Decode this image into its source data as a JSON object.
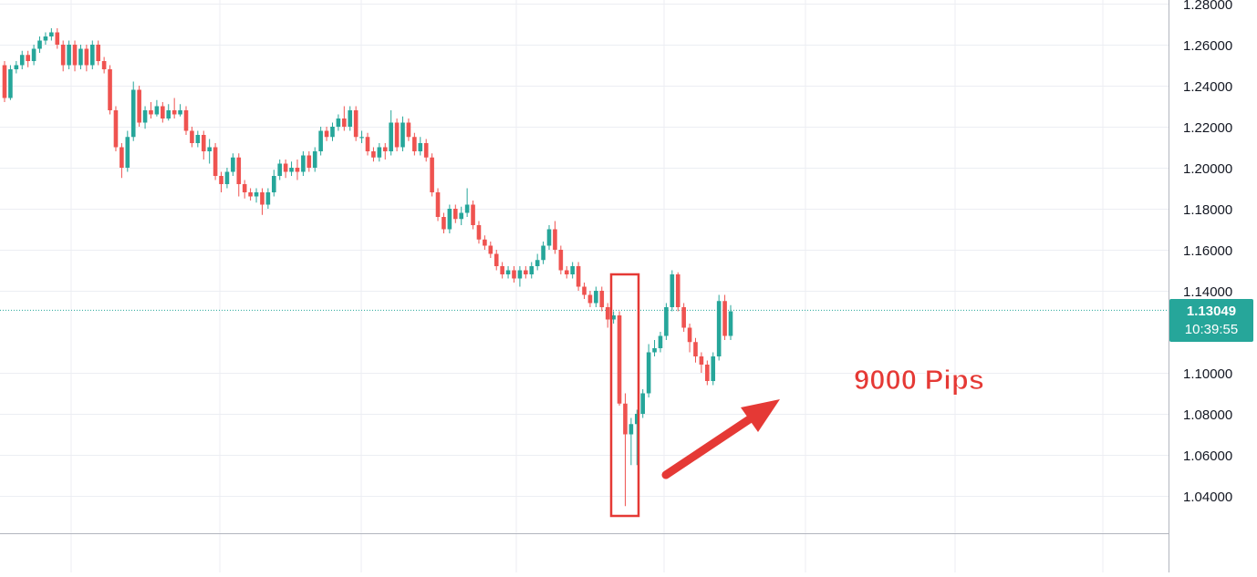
{
  "chart_data": {
    "type": "candlestick",
    "ylim": [
      1.02,
      1.28
    ],
    "y_ticks": [
      {
        "value": 1.28,
        "label": "1.28000"
      },
      {
        "value": 1.26,
        "label": "1.26000"
      },
      {
        "value": 1.24,
        "label": "1.24000"
      },
      {
        "value": 1.22,
        "label": "1.22000"
      },
      {
        "value": 1.2,
        "label": "1.20000"
      },
      {
        "value": 1.18,
        "label": "1.18000"
      },
      {
        "value": 1.16,
        "label": "1.16000"
      },
      {
        "value": 1.14,
        "label": "1.14000"
      },
      {
        "value": 1.1,
        "label": "1.10000"
      },
      {
        "value": 1.08,
        "label": "1.08000"
      },
      {
        "value": 1.06,
        "label": "1.06000"
      },
      {
        "value": 1.04,
        "label": "1.04000"
      }
    ],
    "grid": true,
    "current_price": {
      "value": 1.13049,
      "label": "1.13049",
      "countdown": "10:39:55"
    },
    "candles": [
      [
        1.25,
        1.234,
        1.252,
        1.232
      ],
      [
        1.234,
        1.248,
        1.25,
        1.233
      ],
      [
        1.248,
        1.25,
        1.252,
        1.246
      ],
      [
        1.25,
        1.255,
        1.257,
        1.248
      ],
      [
        1.255,
        1.252,
        1.257,
        1.249
      ],
      [
        1.252,
        1.258,
        1.26,
        1.25
      ],
      [
        1.258,
        1.262,
        1.264,
        1.256
      ],
      [
        1.262,
        1.264,
        1.266,
        1.26
      ],
      [
        1.264,
        1.266,
        1.268,
        1.262
      ],
      [
        1.266,
        1.26,
        1.268,
        1.258
      ],
      [
        1.26,
        1.25,
        1.262,
        1.247
      ],
      [
        1.25,
        1.26,
        1.262,
        1.248
      ],
      [
        1.26,
        1.25,
        1.262,
        1.247
      ],
      [
        1.25,
        1.258,
        1.26,
        1.248
      ],
      [
        1.258,
        1.25,
        1.26,
        1.247
      ],
      [
        1.25,
        1.26,
        1.262,
        1.248
      ],
      [
        1.26,
        1.252,
        1.262,
        1.25
      ],
      [
        1.252,
        1.248,
        1.254,
        1.246
      ],
      [
        1.248,
        1.228,
        1.25,
        1.226
      ],
      [
        1.228,
        1.21,
        1.23,
        1.208
      ],
      [
        1.21,
        1.2,
        1.212,
        1.195
      ],
      [
        1.2,
        1.215,
        1.218,
        1.198
      ],
      [
        1.215,
        1.238,
        1.242,
        1.213
      ],
      [
        1.238,
        1.222,
        1.24,
        1.22
      ],
      [
        1.222,
        1.228,
        1.23,
        1.219
      ],
      [
        1.228,
        1.226,
        1.232,
        1.224
      ],
      [
        1.226,
        1.23,
        1.233,
        1.225
      ],
      [
        1.23,
        1.224,
        1.232,
        1.222
      ],
      [
        1.224,
        1.228,
        1.231,
        1.223
      ],
      [
        1.228,
        1.226,
        1.234,
        1.224
      ],
      [
        1.226,
        1.228,
        1.231,
        1.225
      ],
      [
        1.228,
        1.218,
        1.23,
        1.216
      ],
      [
        1.218,
        1.212,
        1.22,
        1.21
      ],
      [
        1.212,
        1.216,
        1.218,
        1.21
      ],
      [
        1.216,
        1.208,
        1.218,
        1.204
      ],
      [
        1.208,
        1.21,
        1.214,
        1.202
      ],
      [
        1.21,
        1.196,
        1.212,
        1.194
      ],
      [
        1.196,
        1.192,
        1.198,
        1.188
      ],
      [
        1.192,
        1.198,
        1.2,
        1.19
      ],
      [
        1.198,
        1.205,
        1.207,
        1.196
      ],
      [
        1.205,
        1.192,
        1.207,
        1.186
      ],
      [
        1.192,
        1.188,
        1.194,
        1.185
      ],
      [
        1.188,
        1.186,
        1.19,
        1.184
      ],
      [
        1.186,
        1.188,
        1.19,
        1.183
      ],
      [
        1.188,
        1.182,
        1.19,
        1.177
      ],
      [
        1.182,
        1.188,
        1.19,
        1.18
      ],
      [
        1.188,
        1.196,
        1.199,
        1.186
      ],
      [
        1.196,
        1.202,
        1.204,
        1.194
      ],
      [
        1.202,
        1.198,
        1.204,
        1.195
      ],
      [
        1.198,
        1.2,
        1.203,
        1.196
      ],
      [
        1.2,
        1.198,
        1.204,
        1.194
      ],
      [
        1.198,
        1.206,
        1.208,
        1.196
      ],
      [
        1.206,
        1.2,
        1.208,
        1.198
      ],
      [
        1.2,
        1.208,
        1.21,
        1.198
      ],
      [
        1.208,
        1.218,
        1.22,
        1.206
      ],
      [
        1.218,
        1.215,
        1.22,
        1.213
      ],
      [
        1.215,
        1.22,
        1.222,
        1.213
      ],
      [
        1.22,
        1.224,
        1.226,
        1.218
      ],
      [
        1.224,
        1.22,
        1.23,
        1.218
      ],
      [
        1.22,
        1.228,
        1.23,
        1.218
      ],
      [
        1.228,
        1.215,
        1.23,
        1.213
      ],
      [
        1.215,
        1.215,
        1.218,
        1.212
      ],
      [
        1.215,
        1.208,
        1.217,
        1.206
      ],
      [
        1.208,
        1.205,
        1.21,
        1.203
      ],
      [
        1.205,
        1.21,
        1.212,
        1.203
      ],
      [
        1.21,
        1.208,
        1.212,
        1.204
      ],
      [
        1.208,
        1.222,
        1.228,
        1.206
      ],
      [
        1.222,
        1.21,
        1.224,
        1.208
      ],
      [
        1.21,
        1.222,
        1.225,
        1.208
      ],
      [
        1.222,
        1.215,
        1.224,
        1.213
      ],
      [
        1.215,
        1.208,
        1.217,
        1.206
      ],
      [
        1.208,
        1.212,
        1.215,
        1.206
      ],
      [
        1.212,
        1.205,
        1.214,
        1.203
      ],
      [
        1.205,
        1.188,
        1.207,
        1.186
      ],
      [
        1.188,
        1.176,
        1.19,
        1.174
      ],
      [
        1.176,
        1.17,
        1.178,
        1.168
      ],
      [
        1.17,
        1.18,
        1.182,
        1.168
      ],
      [
        1.18,
        1.175,
        1.182,
        1.173
      ],
      [
        1.175,
        1.178,
        1.181,
        1.172
      ],
      [
        1.178,
        1.182,
        1.19,
        1.176
      ],
      [
        1.182,
        1.172,
        1.184,
        1.17
      ],
      [
        1.172,
        1.165,
        1.174,
        1.163
      ],
      [
        1.165,
        1.162,
        1.167,
        1.16
      ],
      [
        1.162,
        1.158,
        1.164,
        1.156
      ],
      [
        1.158,
        1.152,
        1.16,
        1.15
      ],
      [
        1.152,
        1.148,
        1.154,
        1.146
      ],
      [
        1.148,
        1.15,
        1.152,
        1.146
      ],
      [
        1.15,
        1.146,
        1.152,
        1.144
      ],
      [
        1.146,
        1.15,
        1.152,
        1.142
      ],
      [
        1.15,
        1.148,
        1.152,
        1.146
      ],
      [
        1.148,
        1.152,
        1.154,
        1.146
      ],
      [
        1.152,
        1.155,
        1.158,
        1.15
      ],
      [
        1.155,
        1.162,
        1.164,
        1.153
      ],
      [
        1.162,
        1.17,
        1.172,
        1.16
      ],
      [
        1.17,
        1.16,
        1.174,
        1.158
      ],
      [
        1.16,
        1.15,
        1.162,
        1.148
      ],
      [
        1.15,
        1.148,
        1.152,
        1.146
      ],
      [
        1.148,
        1.152,
        1.154,
        1.146
      ],
      [
        1.152,
        1.142,
        1.154,
        1.14
      ],
      [
        1.142,
        1.138,
        1.144,
        1.136
      ],
      [
        1.138,
        1.134,
        1.14,
        1.132
      ],
      [
        1.134,
        1.14,
        1.142,
        1.132
      ],
      [
        1.14,
        1.132,
        1.142,
        1.13
      ],
      [
        1.132,
        1.126,
        1.134,
        1.122
      ],
      [
        1.126,
        1.128,
        1.13,
        1.124
      ],
      [
        1.128,
        1.085,
        1.13,
        1.084
      ],
      [
        1.085,
        1.07,
        1.09,
        1.035
      ],
      [
        1.07,
        1.075,
        1.078,
        1.055
      ],
      [
        1.075,
        1.08,
        1.082,
        1.055
      ],
      [
        1.08,
        1.09,
        1.092,
        1.078
      ],
      [
        1.09,
        1.11,
        1.114,
        1.088
      ],
      [
        1.11,
        1.112,
        1.116,
        1.108
      ],
      [
        1.112,
        1.118,
        1.12,
        1.11
      ],
      [
        1.118,
        1.132,
        1.134,
        1.116
      ],
      [
        1.132,
        1.148,
        1.15,
        1.13
      ],
      [
        1.148,
        1.132,
        1.149,
        1.13
      ],
      [
        1.132,
        1.122,
        1.134,
        1.12
      ],
      [
        1.122,
        1.115,
        1.124,
        1.11
      ],
      [
        1.115,
        1.108,
        1.117,
        1.105
      ],
      [
        1.108,
        1.104,
        1.11,
        1.1
      ],
      [
        1.104,
        1.096,
        1.106,
        1.094
      ],
      [
        1.096,
        1.108,
        1.11,
        1.094
      ],
      [
        1.108,
        1.135,
        1.138,
        1.106
      ],
      [
        1.135,
        1.118,
        1.138,
        1.116
      ],
      [
        1.118,
        1.13,
        1.133,
        1.116
      ]
    ]
  },
  "annotation": {
    "label": "9000 Pips",
    "color": "#e53935"
  },
  "colors": {
    "up": "#26a69a",
    "down": "#ef5350",
    "grid": "#eceef3",
    "axis_line": "#b2b5be",
    "price_line": "#26a69a",
    "tag_bg": "#26a69a",
    "tick_text": "#131722",
    "highlight_box": "#e53935",
    "arrow": "#e53935"
  }
}
